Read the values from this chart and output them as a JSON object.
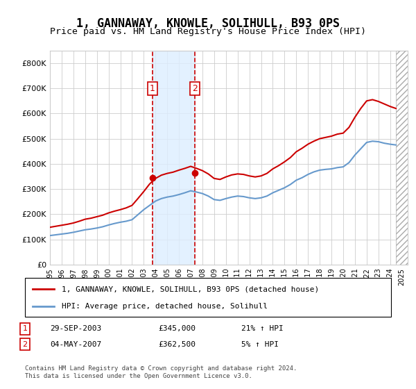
{
  "title": "1, GANNAWAY, KNOWLE, SOLIHULL, B93 0PS",
  "subtitle": "Price paid vs. HM Land Registry's House Price Index (HPI)",
  "legend_line1": "1, GANNAWAY, KNOWLE, SOLIHULL, B93 0PS (detached house)",
  "legend_line2": "HPI: Average price, detached house, Solihull",
  "transaction1_label": "1",
  "transaction1_date": "29-SEP-2003",
  "transaction1_price": "£345,000",
  "transaction1_hpi": "21% ↑ HPI",
  "transaction2_label": "2",
  "transaction2_date": "04-MAY-2007",
  "transaction2_price": "£362,500",
  "transaction2_hpi": "5% ↑ HPI",
  "footer": "Contains HM Land Registry data © Crown copyright and database right 2024.\nThis data is licensed under the Open Government Licence v3.0.",
  "hpi_color": "#6699cc",
  "price_color": "#cc0000",
  "transaction_box_color": "#cc0000",
  "highlight_color": "#ddeeff",
  "highlight_alpha": 0.5,
  "transaction1_x": 2003.75,
  "transaction2_x": 2007.33,
  "ylim_min": 0,
  "ylim_max": 850000,
  "xlim_min": 1995,
  "xlim_max": 2025.5,
  "yticks": [
    0,
    100000,
    200000,
    300000,
    400000,
    500000,
    600000,
    700000,
    800000
  ],
  "xticks": [
    1995,
    1996,
    1997,
    1998,
    1999,
    2000,
    2001,
    2002,
    2003,
    2004,
    2005,
    2006,
    2007,
    2008,
    2009,
    2010,
    2011,
    2012,
    2013,
    2014,
    2015,
    2016,
    2017,
    2018,
    2019,
    2020,
    2021,
    2022,
    2023,
    2024,
    2025
  ],
  "hatch_start": 2024.5,
  "hatch_end": 2025.5
}
